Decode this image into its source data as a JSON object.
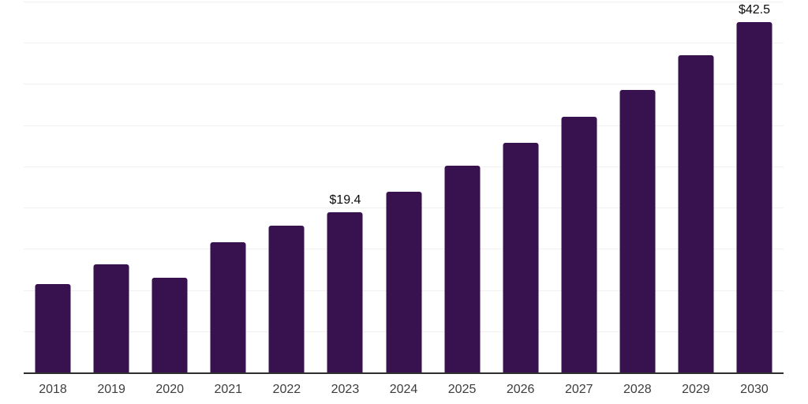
{
  "chart_data": {
    "type": "bar",
    "title": "",
    "xlabel": "",
    "ylabel": "",
    "categories": [
      "2018",
      "2019",
      "2020",
      "2021",
      "2022",
      "2023",
      "2024",
      "2025",
      "2026",
      "2027",
      "2028",
      "2029",
      "2030"
    ],
    "values": [
      10.7,
      13.1,
      11.5,
      15.8,
      17.8,
      19.4,
      21.9,
      25.1,
      27.9,
      31.0,
      34.3,
      38.5,
      42.5
    ],
    "data_labels": {
      "2023": "$19.4",
      "2030": "$42.5"
    },
    "ylim": [
      0,
      45
    ],
    "grid_step": 5,
    "grid": true,
    "legend": false,
    "colors": {
      "bar": "#38124E",
      "gridline": "#f1f1f1",
      "axis_line": "#2f2f2f",
      "tick_label": "#3d3d3d",
      "data_label": "#0a0a0a",
      "background": "#ffffff"
    }
  }
}
